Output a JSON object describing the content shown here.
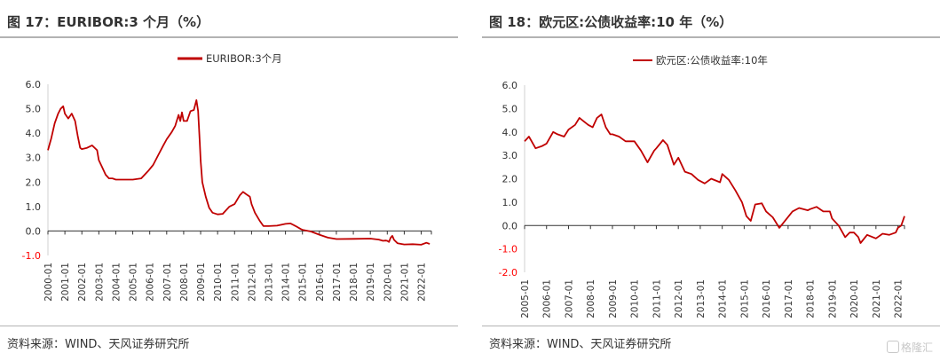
{
  "charts": [
    {
      "title": "图 17：EURIBOR:3 个月（%）",
      "source": "资料来源：WIND、天风证券研究所"
    },
    {
      "title": "图 18：欧元区:公债收益率:10 年（%）",
      "source": "资料来源：WIND、天风证券研究所"
    }
  ],
  "watermark": "格隆汇",
  "colors": {
    "series": "#c00000",
    "negative_tick": "#ff0000",
    "axis": "#d0d0d0",
    "text": "#333333"
  },
  "chart_data": [
    {
      "type": "line",
      "title": "",
      "legend": [
        "EURIBOR:3个月"
      ],
      "legend_position": "top",
      "grid": false,
      "ylim": [
        -1.0,
        6.0
      ],
      "yticks": [
        "6.0",
        "5.0",
        "4.0",
        "3.0",
        "2.0",
        "1.0",
        "0.0",
        "-1.0"
      ],
      "xlim": [
        2000.0,
        2022.6
      ],
      "xticks": [
        "2000-01",
        "2001-01",
        "2002-01",
        "2003-01",
        "2004-01",
        "2005-01",
        "2006-01",
        "2007-01",
        "2008-01",
        "2009-01",
        "2010-01",
        "2011-01",
        "2012-01",
        "2013-01",
        "2014-01",
        "2015-01",
        "2016-01",
        "2017-01",
        "2018-01",
        "2019-01",
        "2020-01",
        "2021-01",
        "2022-01"
      ],
      "series": [
        {
          "name": "EURIBOR:3个月",
          "x": [
            2000.0,
            2000.2,
            2000.4,
            2000.6,
            2000.75,
            2000.9,
            2001.0,
            2001.2,
            2001.4,
            2001.6,
            2001.75,
            2001.9,
            2002.0,
            2002.3,
            2002.6,
            2002.9,
            2003.0,
            2003.2,
            2003.4,
            2003.6,
            2003.8,
            2004.0,
            2004.5,
            2005.0,
            2005.5,
            2005.9,
            2006.2,
            2006.5,
            2006.8,
            2007.0,
            2007.3,
            2007.5,
            2007.7,
            2007.8,
            2007.9,
            2008.0,
            2008.2,
            2008.4,
            2008.6,
            2008.75,
            2008.85,
            2008.95,
            2009.0,
            2009.1,
            2009.3,
            2009.5,
            2009.7,
            2010.0,
            2010.3,
            2010.5,
            2010.7,
            2011.0,
            2011.3,
            2011.5,
            2011.7,
            2011.9,
            2012.0,
            2012.2,
            2012.5,
            2012.7,
            2013.0,
            2013.5,
            2014.0,
            2014.3,
            2014.6,
            2014.9,
            2015.0,
            2015.5,
            2016.0,
            2016.5,
            2017.0,
            2018.0,
            2019.0,
            2019.5,
            2019.75,
            2019.9,
            2020.0,
            2020.1,
            2020.2,
            2020.3,
            2020.4,
            2020.6,
            2021.0,
            2021.5,
            2022.0,
            2022.3,
            2022.5
          ],
          "values": [
            3.3,
            3.8,
            4.4,
            4.8,
            5.0,
            5.1,
            4.8,
            4.6,
            4.8,
            4.5,
            3.9,
            3.4,
            3.35,
            3.4,
            3.5,
            3.3,
            2.9,
            2.6,
            2.3,
            2.15,
            2.15,
            2.1,
            2.1,
            2.1,
            2.15,
            2.45,
            2.7,
            3.1,
            3.5,
            3.75,
            4.05,
            4.3,
            4.75,
            4.5,
            4.85,
            4.5,
            4.5,
            4.9,
            4.95,
            5.35,
            4.9,
            3.6,
            2.9,
            2.0,
            1.4,
            0.95,
            0.75,
            0.68,
            0.7,
            0.85,
            1.0,
            1.1,
            1.45,
            1.6,
            1.5,
            1.4,
            1.1,
            0.75,
            0.4,
            0.2,
            0.2,
            0.22,
            0.29,
            0.31,
            0.2,
            0.08,
            0.05,
            -0.02,
            -0.15,
            -0.27,
            -0.33,
            -0.32,
            -0.31,
            -0.35,
            -0.4,
            -0.39,
            -0.4,
            -0.45,
            -0.28,
            -0.2,
            -0.36,
            -0.5,
            -0.55,
            -0.54,
            -0.56,
            -0.48,
            -0.53
          ]
        }
      ]
    },
    {
      "type": "line",
      "title": "",
      "legend": [
        "欧元区:公债收益率:10年"
      ],
      "legend_position": "top",
      "grid": false,
      "ylim": [
        -2.0,
        6.0
      ],
      "yticks": [
        "6.0",
        "5.0",
        "4.0",
        "3.0",
        "2.0",
        "1.0",
        "0.0",
        "-1.0",
        "-2.0"
      ],
      "xlim": [
        2005.0,
        2022.3
      ],
      "xticks": [
        "2005-01",
        "2006-01",
        "2007-01",
        "2008-01",
        "2009-01",
        "2010-01",
        "2011-01",
        "2012-01",
        "2013-01",
        "2014-01",
        "2015-01",
        "2016-01",
        "2017-01",
        "2018-01",
        "2019-01",
        "2020-01",
        "2021-01",
        "2022-01"
      ],
      "series": [
        {
          "name": "欧元区:公债收益率:10年",
          "x": [
            2005.0,
            2005.2,
            2005.5,
            2005.8,
            2006.0,
            2006.3,
            2006.5,
            2006.8,
            2007.0,
            2007.3,
            2007.5,
            2007.7,
            2007.9,
            2008.1,
            2008.3,
            2008.5,
            2008.7,
            2008.9,
            2009.0,
            2009.3,
            2009.6,
            2010.0,
            2010.3,
            2010.6,
            2010.9,
            2011.0,
            2011.3,
            2011.5,
            2011.8,
            2012.0,
            2012.3,
            2012.6,
            2012.9,
            2013.2,
            2013.5,
            2013.9,
            2014.0,
            2014.3,
            2014.6,
            2014.9,
            2015.1,
            2015.3,
            2015.5,
            2015.8,
            2016.0,
            2016.3,
            2016.6,
            2016.9,
            2017.2,
            2017.5,
            2017.9,
            2018.0,
            2018.3,
            2018.6,
            2018.9,
            2019.0,
            2019.3,
            2019.6,
            2019.8,
            2020.0,
            2020.2,
            2020.3,
            2020.6,
            2021.0,
            2021.3,
            2021.6,
            2021.9,
            2022.0,
            2022.15,
            2022.3
          ],
          "values": [
            3.6,
            3.8,
            3.3,
            3.4,
            3.5,
            4.0,
            3.9,
            3.8,
            4.1,
            4.3,
            4.6,
            4.45,
            4.3,
            4.2,
            4.6,
            4.75,
            4.2,
            3.9,
            3.9,
            3.8,
            3.6,
            3.6,
            3.2,
            2.7,
            3.2,
            3.3,
            3.65,
            3.45,
            2.6,
            2.9,
            2.3,
            2.2,
            1.95,
            1.8,
            2.0,
            1.85,
            2.2,
            1.95,
            1.5,
            1.0,
            0.4,
            0.2,
            0.9,
            0.95,
            0.6,
            0.35,
            -0.1,
            0.25,
            0.6,
            0.75,
            0.65,
            0.7,
            0.8,
            0.6,
            0.6,
            0.3,
            0.0,
            -0.5,
            -0.3,
            -0.3,
            -0.5,
            -0.75,
            -0.4,
            -0.55,
            -0.35,
            -0.4,
            -0.3,
            -0.1,
            0.0,
            0.4
          ]
        }
      ]
    }
  ]
}
